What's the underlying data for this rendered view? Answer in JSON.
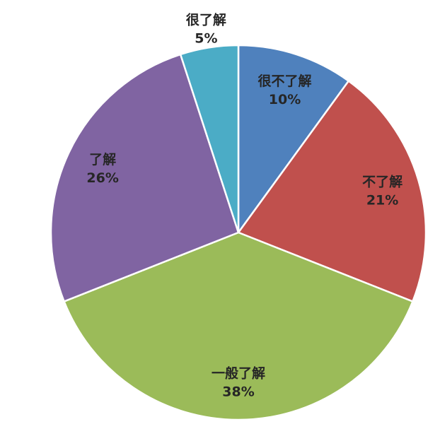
{
  "chart_data": {
    "type": "pie",
    "categories": [
      "很不了解",
      "不了解",
      "一般了解",
      "了解",
      "很了解"
    ],
    "values": [
      10,
      21,
      38,
      26,
      5
    ],
    "value_labels": [
      "10%",
      "21%",
      "38%",
      "26%",
      "5%"
    ],
    "colors": [
      "#4f81bd",
      "#c0504d",
      "#9bbb59",
      "#8064a2",
      "#4bacc6"
    ]
  }
}
